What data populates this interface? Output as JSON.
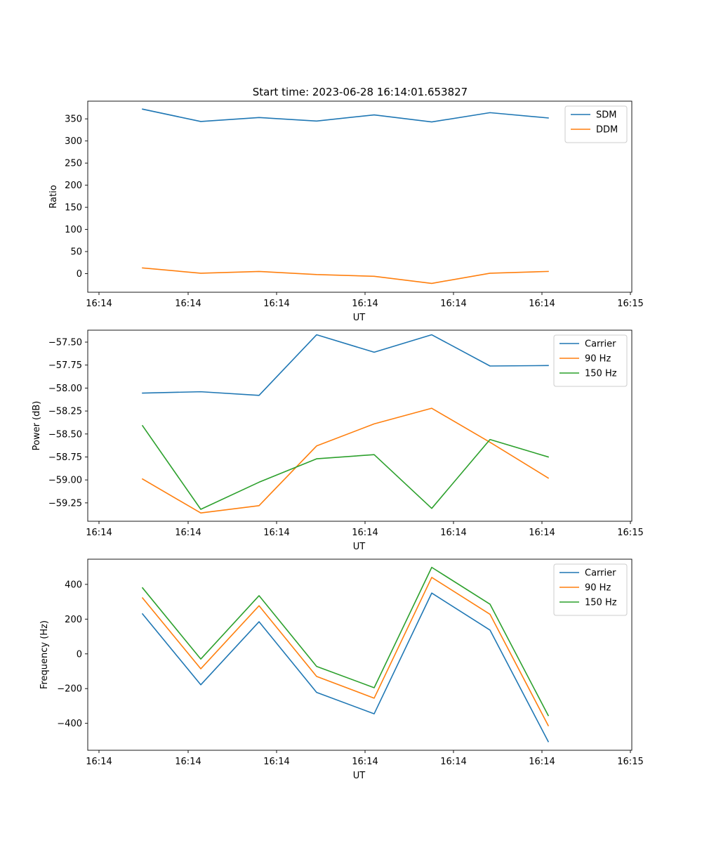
{
  "figure": {
    "title": "Start time: 2023-06-28 16:14:01.653827"
  },
  "colors": {
    "blue": "#1f77b4",
    "orange": "#ff7f0e",
    "green": "#2ca02c"
  },
  "chart_data": [
    {
      "type": "line",
      "title": "Start time: 2023-06-28 16:14:01.653827",
      "xlabel": "UT",
      "ylabel": "Ratio",
      "x_tick_labels": [
        "16:14",
        "16:14",
        "16:14",
        "16:14",
        "16:14",
        "16:14",
        "16:15"
      ],
      "y_ticks": [
        0,
        50,
        100,
        150,
        200,
        250,
        300,
        350
      ],
      "y_tick_labels": [
        "0",
        "50",
        "100",
        "150",
        "200",
        "250",
        "300",
        "350"
      ],
      "ylim": [
        -42,
        390
      ],
      "grid": false,
      "legend_position": "top-right",
      "series": [
        {
          "name": "SDM",
          "color": "#1f77b4",
          "values": [
            372,
            344,
            353,
            345,
            359,
            343,
            364,
            352
          ]
        },
        {
          "name": "DDM",
          "color": "#ff7f0e",
          "values": [
            13,
            1,
            5,
            -2,
            -6,
            -22,
            1,
            5
          ]
        }
      ]
    },
    {
      "type": "line",
      "title": "",
      "xlabel": "UT",
      "ylabel": "Power (dB)",
      "x_tick_labels": [
        "16:14",
        "16:14",
        "16:14",
        "16:14",
        "16:14",
        "16:14",
        "16:15"
      ],
      "y_ticks": [
        -59.25,
        -59.0,
        -58.75,
        -58.5,
        -58.25,
        -58.0,
        -57.75,
        -57.5
      ],
      "y_tick_labels": [
        "−59.25",
        "−59.00",
        "−58.75",
        "−58.50",
        "−58.25",
        "−58.00",
        "−57.75",
        "−57.50"
      ],
      "ylim": [
        -59.45,
        -57.37
      ],
      "grid": false,
      "legend_position": "top-right",
      "series": [
        {
          "name": "Carrier",
          "color": "#1f77b4",
          "values": [
            -58.055,
            -58.04,
            -58.08,
            -57.42,
            -57.61,
            -57.42,
            -57.76,
            -57.755
          ]
        },
        {
          "name": "90 Hz",
          "color": "#ff7f0e",
          "values": [
            -58.99,
            -59.36,
            -59.28,
            -58.63,
            -58.39,
            -58.22,
            -58.59,
            -58.98
          ]
        },
        {
          "name": "150 Hz",
          "color": "#2ca02c",
          "values": [
            -58.41,
            -59.32,
            -59.025,
            -58.77,
            -58.725,
            -59.31,
            -58.56,
            -58.75
          ]
        }
      ]
    },
    {
      "type": "line",
      "title": "",
      "xlabel": "UT",
      "ylabel": "Frequency (Hz)",
      "x_tick_labels": [
        "16:14",
        "16:14",
        "16:14",
        "16:14",
        "16:14",
        "16:14",
        "16:15"
      ],
      "y_ticks": [
        -400,
        -200,
        0,
        200,
        400
      ],
      "y_tick_labels": [
        "−400",
        "−200",
        "0",
        "200",
        "400"
      ],
      "ylim": [
        -555,
        545
      ],
      "grid": false,
      "legend_position": "top-right",
      "series": [
        {
          "name": "Carrier",
          "color": "#1f77b4",
          "values": [
            230,
            -178,
            185,
            -222,
            -345,
            350,
            137,
            -505
          ]
        },
        {
          "name": "90 Hz",
          "color": "#ff7f0e",
          "values": [
            322,
            -86,
            277,
            -130,
            -255,
            440,
            228,
            -413
          ]
        },
        {
          "name": "150 Hz",
          "color": "#2ca02c",
          "values": [
            380,
            -30,
            335,
            -72,
            -195,
            498,
            286,
            -355
          ]
        }
      ]
    }
  ]
}
